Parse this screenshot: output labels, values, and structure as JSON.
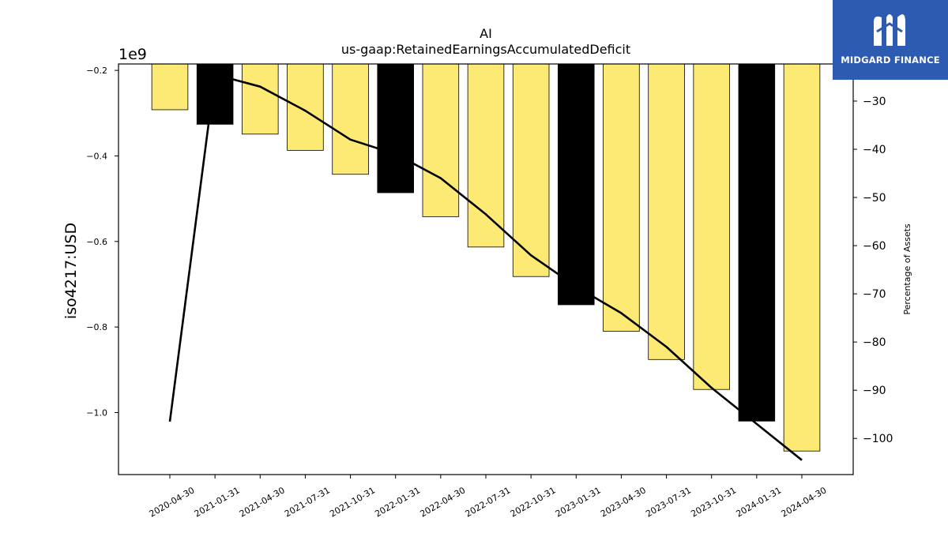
{
  "chart_data": {
    "type": "bar",
    "title": "AI",
    "subtitle": "us-gaap:RetainedEarningsAccumulatedDeficit",
    "ylabel": "iso4217:USD",
    "y2label": "Percentage of Assets",
    "offset_label": "1e9",
    "categories": [
      "2020-04-30",
      "2021-01-31",
      "2021-04-30",
      "2021-07-31",
      "2021-10-31",
      "2022-01-31",
      "2022-04-30",
      "2022-07-31",
      "2022-10-31",
      "2023-01-31",
      "2023-04-30",
      "2023-07-31",
      "2023-10-31",
      "2024-01-31",
      "2024-04-30"
    ],
    "values": [
      -0.292,
      -0.326,
      -0.349,
      -0.387,
      -0.443,
      -0.486,
      -0.542,
      -0.613,
      -0.682,
      -0.748,
      -0.81,
      -0.876,
      -0.946,
      -1.02,
      -1.09
    ],
    "value_scale": 1000000000.0,
    "bar_colors": [
      "#fdea75",
      "#000000",
      "#fdea75",
      "#fdea75",
      "#fdea75",
      "#000000",
      "#fdea75",
      "#fdea75",
      "#fdea75",
      "#000000",
      "#fdea75",
      "#fdea75",
      "#fdea75",
      "#000000",
      "#fdea75"
    ],
    "line_values": [
      -96.5,
      -24.5,
      -27.0,
      -32.0,
      -38.0,
      -41.0,
      -46.0,
      -53.5,
      -62.0,
      -68.5,
      -74.0,
      -81.0,
      -89.5,
      -97.0,
      -104.5
    ],
    "ylim": [
      -1.145,
      -0.185
    ],
    "y2lim": [
      -107.5,
      -22.3
    ],
    "yticks": [
      -0.2,
      -0.4,
      -0.6,
      -0.8,
      -1.0
    ],
    "ytick_labels": [
      "−0.2",
      "−0.4",
      "−0.6",
      "−0.8",
      "−1.0"
    ],
    "y2ticks": [
      -30,
      -40,
      -50,
      -60,
      -70,
      -80,
      -90,
      -100
    ],
    "y2tick_labels": [
      "−30",
      "−40",
      "−50",
      "−60",
      "−70",
      "−80",
      "−90",
      "−100"
    ],
    "grid": false
  },
  "logo": {
    "text": "MIDGARD FINANCE"
  }
}
